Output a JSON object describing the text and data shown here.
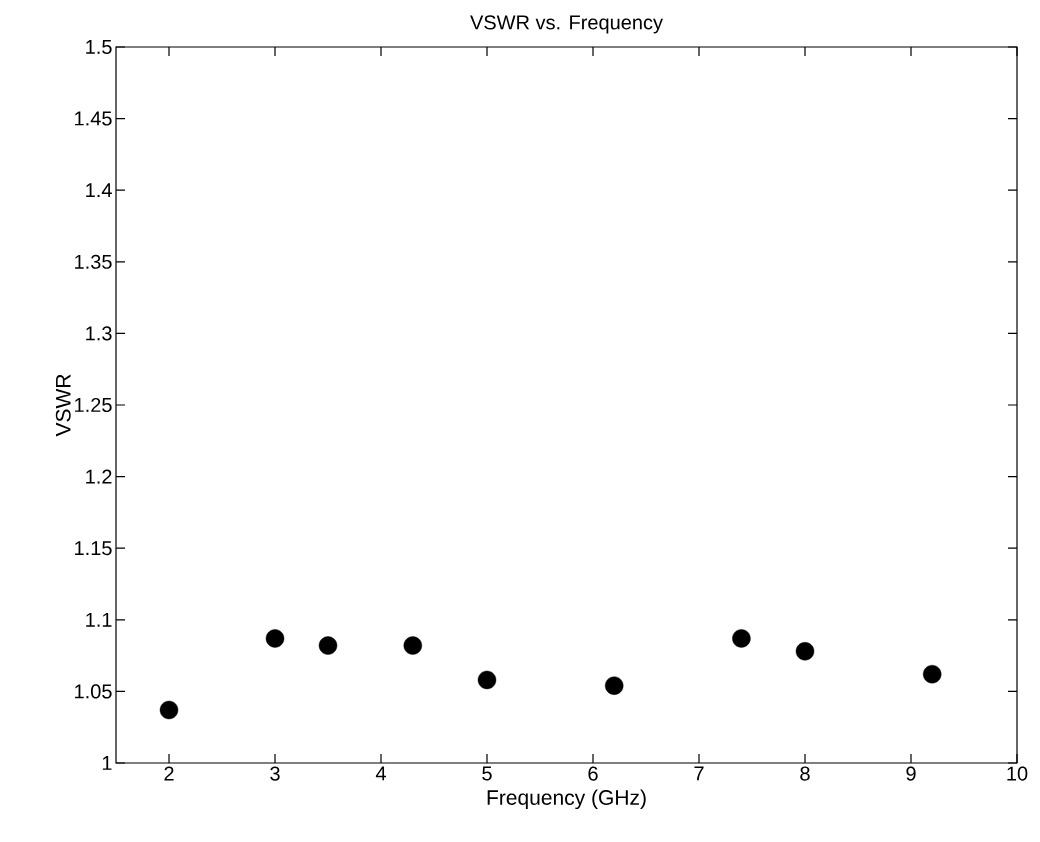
{
  "chart_data": {
    "type": "scatter",
    "title": "VSWR vs. Frequency",
    "xlabel": "Frequency (GHz)",
    "ylabel": "VSWR",
    "x": [
      2,
      3,
      3.5,
      4.3,
      5,
      6.2,
      7.4,
      8,
      9.2
    ],
    "series": [
      {
        "color": "#000000",
        "values": [
          1.037,
          1.087,
          1.082,
          1.082,
          1.058,
          1.054,
          1.087,
          1.078,
          1.062
        ]
      }
    ],
    "xlim": [
      1.5,
      10
    ],
    "ylim": [
      1,
      1.5
    ],
    "xticks": [
      2,
      3,
      4,
      5,
      6,
      7,
      8,
      9,
      10
    ],
    "yticks": [
      1,
      1.05,
      1.1,
      1.15,
      1.2,
      1.25,
      1.3,
      1.35,
      1.4,
      1.45,
      1.5
    ],
    "marker": "circle"
  }
}
